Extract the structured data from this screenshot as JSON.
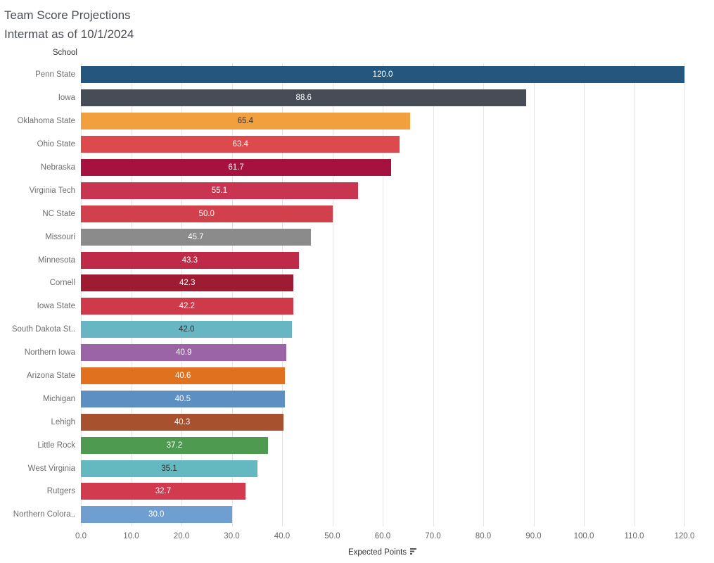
{
  "title": {
    "line1": "Team Score Projections",
    "line2": "Intermat as of 10/1/2024"
  },
  "row_header": "School",
  "axis": {
    "label": "Expected Points"
  },
  "chart_data": {
    "type": "bar",
    "orientation": "horizontal",
    "title": "Team Score Projections Intermat as of 10/1/2024",
    "xlabel": "Expected Points",
    "ylabel": "School",
    "xlim": [
      0,
      120
    ],
    "x_ticks": [
      0,
      10,
      20,
      30,
      40,
      50,
      60,
      70,
      80,
      90,
      100,
      110,
      120
    ],
    "grid": true,
    "categories": [
      "Penn State",
      "Iowa",
      "Oklahoma State",
      "Ohio State",
      "Nebraska",
      "Virginia Tech",
      "NC State",
      "Missouri",
      "Minnesota",
      "Cornell",
      "Iowa State",
      "South Dakota St..",
      "Northern Iowa",
      "Arizona State",
      "Michigan",
      "Lehigh",
      "Little Rock",
      "West Virginia",
      "Rutgers",
      "Northern Colora.."
    ],
    "values": [
      120.0,
      88.6,
      65.4,
      63.4,
      61.7,
      55.1,
      50.0,
      45.7,
      43.3,
      42.3,
      42.2,
      42.0,
      40.9,
      40.6,
      40.5,
      40.3,
      37.2,
      35.1,
      32.7,
      30.0
    ],
    "bar_colors": [
      "#24567e",
      "#474c56",
      "#f2a03d",
      "#dd4a4d",
      "#a5123f",
      "#c93450",
      "#d2404b",
      "#8b8b8b",
      "#bd2b49",
      "#9e1c31",
      "#ce3a4a",
      "#68b6c4",
      "#9a64a6",
      "#e0711f",
      "#5d8fc3",
      "#a7512e",
      "#4f9a51",
      "#64b8c0",
      "#d23a50",
      "#6e9fd0"
    ],
    "value_label_colors": [
      "#ffffff",
      "#ffffff",
      "#2f2f2f",
      "#ffffff",
      "#ffffff",
      "#ffffff",
      "#ffffff",
      "#ffffff",
      "#ffffff",
      "#ffffff",
      "#ffffff",
      "#2f2f2f",
      "#ffffff",
      "#ffffff",
      "#ffffff",
      "#ffffff",
      "#ffffff",
      "#2f2f2f",
      "#ffffff",
      "#ffffff"
    ],
    "gridline_color": "#e4e4e4"
  }
}
